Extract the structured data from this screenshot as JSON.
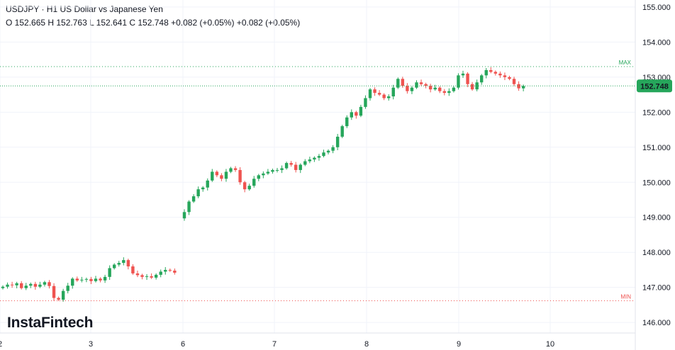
{
  "header": {
    "title": "USDJPY · H1 US Dollar vs Japanese Yen",
    "ohlc": "O 152.665 H 152.763 L 152.641 C 152.748 +0.082 (+0.05%) +0.082 (+0.05%)"
  },
  "logo": "InstaFintech",
  "colors": {
    "up": "#26a65b",
    "down": "#ef5350",
    "grid": "#f0f3fa",
    "price_line": "#26a65b",
    "min_line": "#ef5350"
  },
  "chart_data": {
    "type": "candlestick",
    "symbol": "USDJPY",
    "timeframe": "H1",
    "ylim": [
      145.7,
      155.2
    ],
    "y_ticks": [
      "146.000",
      "147.000",
      "148.000",
      "149.000",
      "150.000",
      "151.000",
      "152.000",
      "153.000",
      "154.000",
      "155.000"
    ],
    "x_ticks": [
      "2",
      "3",
      "6",
      "7",
      "8",
      "9",
      "10"
    ],
    "last_price": "152.748",
    "max_label": "MAX",
    "max_value": 153.3,
    "min_label": "MIN",
    "min_value": 146.62,
    "closes": [
      147.02,
      147.08,
      147.06,
      147.12,
      146.98,
      147.05,
      147.1,
      147.02,
      147.08,
      147.15,
      147.04,
      146.7,
      146.65,
      146.9,
      147.05,
      147.25,
      147.2,
      147.22,
      147.24,
      147.18,
      147.25,
      147.2,
      147.3,
      147.55,
      147.65,
      147.7,
      147.78,
      147.6,
      147.4,
      147.35,
      147.3,
      147.32,
      147.28,
      147.36,
      147.45,
      147.5,
      147.48,
      147.42,
      149.15,
      149.45,
      149.6,
      149.8,
      149.85,
      150.05,
      150.3,
      150.2,
      150.1,
      150.3,
      150.4,
      150.35,
      150.0,
      149.8,
      149.9,
      150.1,
      150.2,
      150.25,
      150.3,
      150.35,
      150.35,
      150.4,
      150.55,
      150.5,
      150.35,
      150.5,
      150.6,
      150.65,
      150.7,
      150.75,
      150.85,
      150.9,
      151.0,
      151.3,
      151.6,
      151.85,
      152.0,
      151.9,
      152.15,
      152.4,
      152.65,
      152.55,
      152.5,
      152.4,
      152.45,
      152.7,
      152.95,
      152.75,
      152.6,
      152.7,
      152.85,
      152.8,
      152.75,
      152.65,
      152.7,
      152.6,
      152.55,
      152.6,
      152.7,
      153.05,
      153.1,
      152.8,
      152.65,
      152.85,
      153.05,
      153.2,
      153.15,
      153.1,
      153.05,
      153.0,
      152.95,
      152.8,
      152.68,
      152.748
    ]
  }
}
